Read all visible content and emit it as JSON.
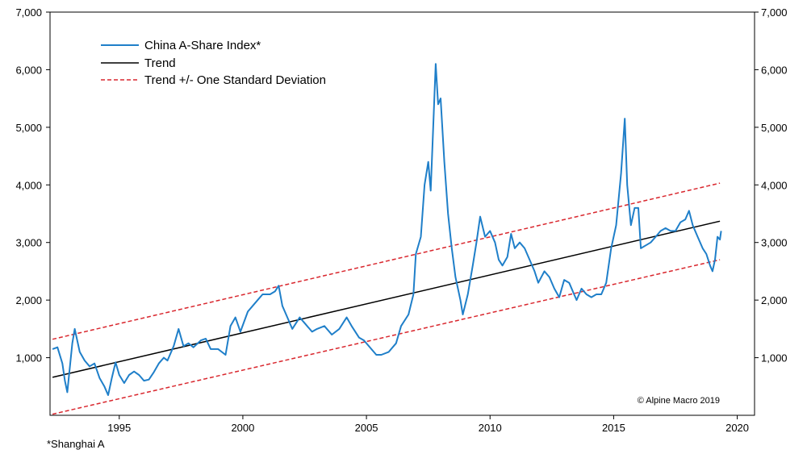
{
  "chart_data": {
    "type": "line",
    "xlim": [
      1992.2,
      2020.7
    ],
    "ylim": [
      0,
      7000
    ],
    "x_ticks": [
      1995,
      2000,
      2005,
      2010,
      2015,
      2020
    ],
    "y_ticks": [
      1000,
      2000,
      3000,
      4000,
      5000,
      6000,
      7000
    ],
    "y_tick_labels": [
      "1,000",
      "2,000",
      "3,000",
      "4,000",
      "5,000",
      "6,000",
      "7,000"
    ],
    "legend": {
      "placement": "top-left",
      "entries": [
        "China A-Share Index*",
        "Trend",
        "Trend +/- One Standard Deviation"
      ]
    },
    "copyright": "© Alpine Macro 2019",
    "footnote": "*Shanghai A",
    "colors": {
      "index": "#1f7fc9",
      "trend": "#000000",
      "band": "#d9272e"
    },
    "series": [
      {
        "name": "China A-Share Index*",
        "points": [
          [
            1992.3,
            1150
          ],
          [
            1992.5,
            1180
          ],
          [
            1992.7,
            900
          ],
          [
            1992.8,
            600
          ],
          [
            1992.9,
            400
          ],
          [
            1993.1,
            1250
          ],
          [
            1993.2,
            1500
          ],
          [
            1993.4,
            1100
          ],
          [
            1993.6,
            950
          ],
          [
            1993.8,
            850
          ],
          [
            1994.0,
            900
          ],
          [
            1994.2,
            650
          ],
          [
            1994.4,
            500
          ],
          [
            1994.55,
            350
          ],
          [
            1994.7,
            650
          ],
          [
            1994.85,
            920
          ],
          [
            1995.0,
            700
          ],
          [
            1995.2,
            560
          ],
          [
            1995.4,
            700
          ],
          [
            1995.6,
            760
          ],
          [
            1995.8,
            700
          ],
          [
            1996.0,
            600
          ],
          [
            1996.2,
            620
          ],
          [
            1996.4,
            750
          ],
          [
            1996.6,
            900
          ],
          [
            1996.8,
            1000
          ],
          [
            1996.95,
            950
          ],
          [
            1997.2,
            1200
          ],
          [
            1997.4,
            1500
          ],
          [
            1997.6,
            1200
          ],
          [
            1997.8,
            1250
          ],
          [
            1998.0,
            1180
          ],
          [
            1998.3,
            1300
          ],
          [
            1998.5,
            1330
          ],
          [
            1998.7,
            1150
          ],
          [
            1999.0,
            1150
          ],
          [
            1999.3,
            1050
          ],
          [
            1999.5,
            1550
          ],
          [
            1999.7,
            1700
          ],
          [
            1999.9,
            1450
          ],
          [
            2000.2,
            1800
          ],
          [
            2000.5,
            1950
          ],
          [
            2000.8,
            2100
          ],
          [
            2001.1,
            2100
          ],
          [
            2001.3,
            2150
          ],
          [
            2001.45,
            2250
          ],
          [
            2001.6,
            1900
          ],
          [
            2001.8,
            1700
          ],
          [
            2002.0,
            1500
          ],
          [
            2002.3,
            1700
          ],
          [
            2002.5,
            1600
          ],
          [
            2002.8,
            1450
          ],
          [
            2003.0,
            1500
          ],
          [
            2003.3,
            1550
          ],
          [
            2003.6,
            1400
          ],
          [
            2003.9,
            1500
          ],
          [
            2004.2,
            1700
          ],
          [
            2004.4,
            1550
          ],
          [
            2004.7,
            1350
          ],
          [
            2004.9,
            1300
          ],
          [
            2005.2,
            1150
          ],
          [
            2005.4,
            1050
          ],
          [
            2005.6,
            1050
          ],
          [
            2005.9,
            1100
          ],
          [
            2006.2,
            1250
          ],
          [
            2006.4,
            1550
          ],
          [
            2006.7,
            1750
          ],
          [
            2006.9,
            2100
          ],
          [
            2007.0,
            2800
          ],
          [
            2007.2,
            3100
          ],
          [
            2007.35,
            4000
          ],
          [
            2007.5,
            4400
          ],
          [
            2007.6,
            3900
          ],
          [
            2007.7,
            5000
          ],
          [
            2007.8,
            6100
          ],
          [
            2007.9,
            5400
          ],
          [
            2008.0,
            5500
          ],
          [
            2008.15,
            4400
          ],
          [
            2008.3,
            3500
          ],
          [
            2008.45,
            2900
          ],
          [
            2008.6,
            2400
          ],
          [
            2008.8,
            2000
          ],
          [
            2008.9,
            1750
          ],
          [
            2009.1,
            2100
          ],
          [
            2009.3,
            2600
          ],
          [
            2009.45,
            3000
          ],
          [
            2009.6,
            3450
          ],
          [
            2009.8,
            3100
          ],
          [
            2010.0,
            3200
          ],
          [
            2010.2,
            3000
          ],
          [
            2010.35,
            2700
          ],
          [
            2010.5,
            2600
          ],
          [
            2010.7,
            2750
          ],
          [
            2010.85,
            3150
          ],
          [
            2011.0,
            2900
          ],
          [
            2011.2,
            3000
          ],
          [
            2011.4,
            2900
          ],
          [
            2011.6,
            2700
          ],
          [
            2011.8,
            2500
          ],
          [
            2011.95,
            2300
          ],
          [
            2012.2,
            2500
          ],
          [
            2012.4,
            2400
          ],
          [
            2012.6,
            2200
          ],
          [
            2012.8,
            2050
          ],
          [
            2013.0,
            2350
          ],
          [
            2013.2,
            2300
          ],
          [
            2013.4,
            2100
          ],
          [
            2013.5,
            2000
          ],
          [
            2013.7,
            2200
          ],
          [
            2013.9,
            2100
          ],
          [
            2014.1,
            2050
          ],
          [
            2014.3,
            2100
          ],
          [
            2014.5,
            2100
          ],
          [
            2014.7,
            2300
          ],
          [
            2014.9,
            2900
          ],
          [
            2015.1,
            3300
          ],
          [
            2015.3,
            4200
          ],
          [
            2015.45,
            5150
          ],
          [
            2015.55,
            4000
          ],
          [
            2015.7,
            3300
          ],
          [
            2015.85,
            3600
          ],
          [
            2016.0,
            3600
          ],
          [
            2016.1,
            2900
          ],
          [
            2016.3,
            2950
          ],
          [
            2016.5,
            3000
          ],
          [
            2016.7,
            3100
          ],
          [
            2016.9,
            3200
          ],
          [
            2017.1,
            3250
          ],
          [
            2017.3,
            3200
          ],
          [
            2017.5,
            3200
          ],
          [
            2017.7,
            3350
          ],
          [
            2017.9,
            3400
          ],
          [
            2018.05,
            3550
          ],
          [
            2018.2,
            3300
          ],
          [
            2018.4,
            3100
          ],
          [
            2018.6,
            2900
          ],
          [
            2018.75,
            2800
          ],
          [
            2018.9,
            2600
          ],
          [
            2019.0,
            2500
          ],
          [
            2019.1,
            2700
          ],
          [
            2019.2,
            3100
          ],
          [
            2019.3,
            3050
          ],
          [
            2019.35,
            3200
          ]
        ]
      },
      {
        "name": "Trend",
        "points": [
          [
            1992.3,
            660
          ],
          [
            2019.3,
            3370
          ]
        ]
      },
      {
        "name": "Trend +/- One Standard Deviation",
        "points": [
          [
            1992.3,
            1320
          ],
          [
            2019.3,
            4030
          ]
        ]
      },
      {
        "name": "Trend +/- One Standard Deviation",
        "points": [
          [
            1992.3,
            20
          ],
          [
            2019.3,
            2700
          ]
        ]
      }
    ]
  }
}
